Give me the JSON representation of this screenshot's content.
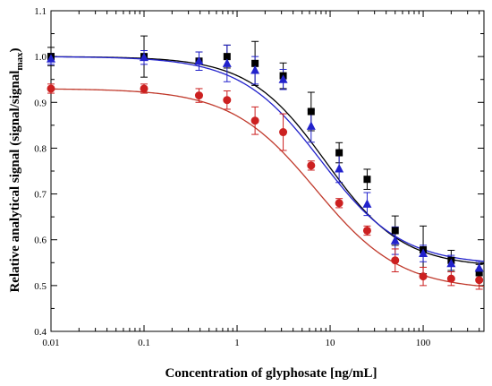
{
  "chart_data": {
    "type": "scatter",
    "title": "",
    "xlabel": "Concentration of glyphosate [ng/mL]",
    "ylabel_main": "Relative analytical signal (signal/signal",
    "ylabel_sub": "max",
    "ylabel_tail": ")",
    "xscale": "log",
    "xlim": [
      0.01,
      450
    ],
    "ylim": [
      0.4,
      1.1
    ],
    "xticks": [
      0.01,
      0.1,
      1,
      10,
      100
    ],
    "xtick_labels": [
      "0.01",
      "0.1",
      "1",
      "10",
      "100"
    ],
    "yticks": [
      0.4,
      0.5,
      0.6,
      0.7,
      0.8,
      0.9,
      1.0,
      1.1
    ],
    "ytick_labels": [
      "0.4",
      "0.5",
      "0.6",
      "0.7",
      "0.8",
      "0.9",
      "1.0",
      "1.1"
    ],
    "grid": false,
    "legend": "none",
    "series": [
      {
        "marker": "square",
        "color": "#000000",
        "curve_color": "#000000",
        "x": [
          0.01,
          0.1,
          0.39,
          0.78,
          1.56,
          3.13,
          6.25,
          12.5,
          25,
          50,
          100,
          200,
          400
        ],
        "y": [
          1.0,
          1.0,
          0.99,
          1.0,
          0.985,
          0.958,
          0.88,
          0.79,
          0.732,
          0.62,
          0.578,
          0.555,
          0.528
        ],
        "err": [
          0.02,
          0.045,
          0.02,
          0.025,
          0.048,
          0.028,
          0.042,
          0.022,
          0.022,
          0.032,
          0.052,
          0.022,
          0.018
        ],
        "fit": {
          "top": 1.0,
          "bottom": 0.54,
          "ec50": 9.0,
          "hill": 1.05
        }
      },
      {
        "marker": "triangle",
        "color": "#2222cc",
        "curve_color": "#2222cc",
        "x": [
          0.01,
          0.1,
          0.39,
          0.78,
          1.56,
          3.13,
          6.25,
          12.5,
          25,
          50,
          100,
          200,
          400
        ],
        "y": [
          0.995,
          0.998,
          0.99,
          0.985,
          0.97,
          0.95,
          0.848,
          0.755,
          0.678,
          0.598,
          0.57,
          0.548,
          0.538
        ],
        "err": [
          0.012,
          0.015,
          0.02,
          0.04,
          0.03,
          0.022,
          0.035,
          0.03,
          0.025,
          0.03,
          0.018,
          0.018,
          0.015
        ],
        "fit": {
          "top": 1.0,
          "bottom": 0.545,
          "ec50": 8.0,
          "hill": 1.0
        }
      },
      {
        "marker": "circle",
        "color": "#cc2020",
        "curve_color": "#c0392b",
        "x": [
          0.01,
          0.1,
          0.39,
          0.78,
          1.56,
          3.13,
          6.25,
          12.5,
          25,
          50,
          100,
          200,
          400
        ],
        "y": [
          0.93,
          0.93,
          0.915,
          0.905,
          0.86,
          0.835,
          0.762,
          0.68,
          0.62,
          0.555,
          0.52,
          0.515,
          0.512
        ],
        "err": [
          0.01,
          0.01,
          0.015,
          0.02,
          0.03,
          0.04,
          0.01,
          0.01,
          0.01,
          0.025,
          0.02,
          0.015,
          0.02
        ],
        "fit": {
          "top": 0.93,
          "bottom": 0.49,
          "ec50": 7.0,
          "hill": 0.95
        }
      }
    ]
  }
}
